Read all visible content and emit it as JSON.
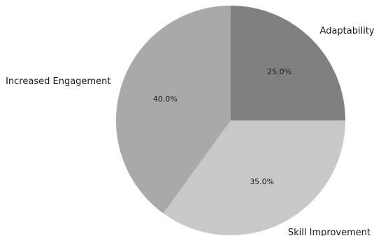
{
  "chart_data": {
    "type": "pie",
    "title": "",
    "start_angle_deg": 90,
    "direction": "clockwise",
    "slices": [
      {
        "label": "Adaptability",
        "value": 25.0,
        "percent_label": "25.0%",
        "color": "#808080"
      },
      {
        "label": "Skill Improvement",
        "value": 35.0,
        "percent_label": "35.0%",
        "color": "#c8c8c8"
      },
      {
        "label": "Increased Engagement",
        "value": 40.0,
        "percent_label": "40.0%",
        "color": "#a9a9a9"
      }
    ]
  }
}
